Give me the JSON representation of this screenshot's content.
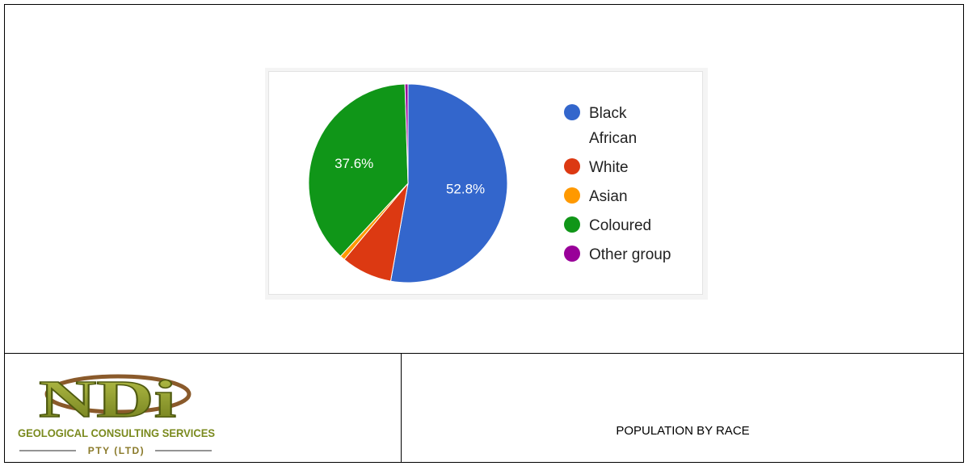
{
  "caption": "POPULATION BY RACE",
  "logo": {
    "mark": "NDi",
    "company": "GEOLOGICAL CONSULTING SERVICES",
    "suffix": "PTY (LTD)"
  },
  "chart_data": {
    "type": "pie",
    "title": "",
    "categories": [
      "Black African",
      "White",
      "Asian",
      "Coloured",
      "Other group"
    ],
    "values": [
      52.8,
      8.3,
      0.8,
      37.6,
      0.5
    ],
    "colors": [
      "#3366cc",
      "#dc3912",
      "#ff9900",
      "#109618",
      "#990099"
    ],
    "data_labels": [
      "52.8%",
      "",
      "",
      "37.6%",
      ""
    ],
    "legend": {
      "position": "right",
      "entries": [
        {
          "lines": [
            "Black",
            "African"
          ],
          "color": "#3366cc"
        },
        {
          "lines": [
            "White"
          ],
          "color": "#dc3912"
        },
        {
          "lines": [
            "Asian"
          ],
          "color": "#ff9900"
        },
        {
          "lines": [
            "Coloured"
          ],
          "color": "#109618"
        },
        {
          "lines": [
            "Other group"
          ],
          "color": "#990099"
        }
      ]
    }
  }
}
